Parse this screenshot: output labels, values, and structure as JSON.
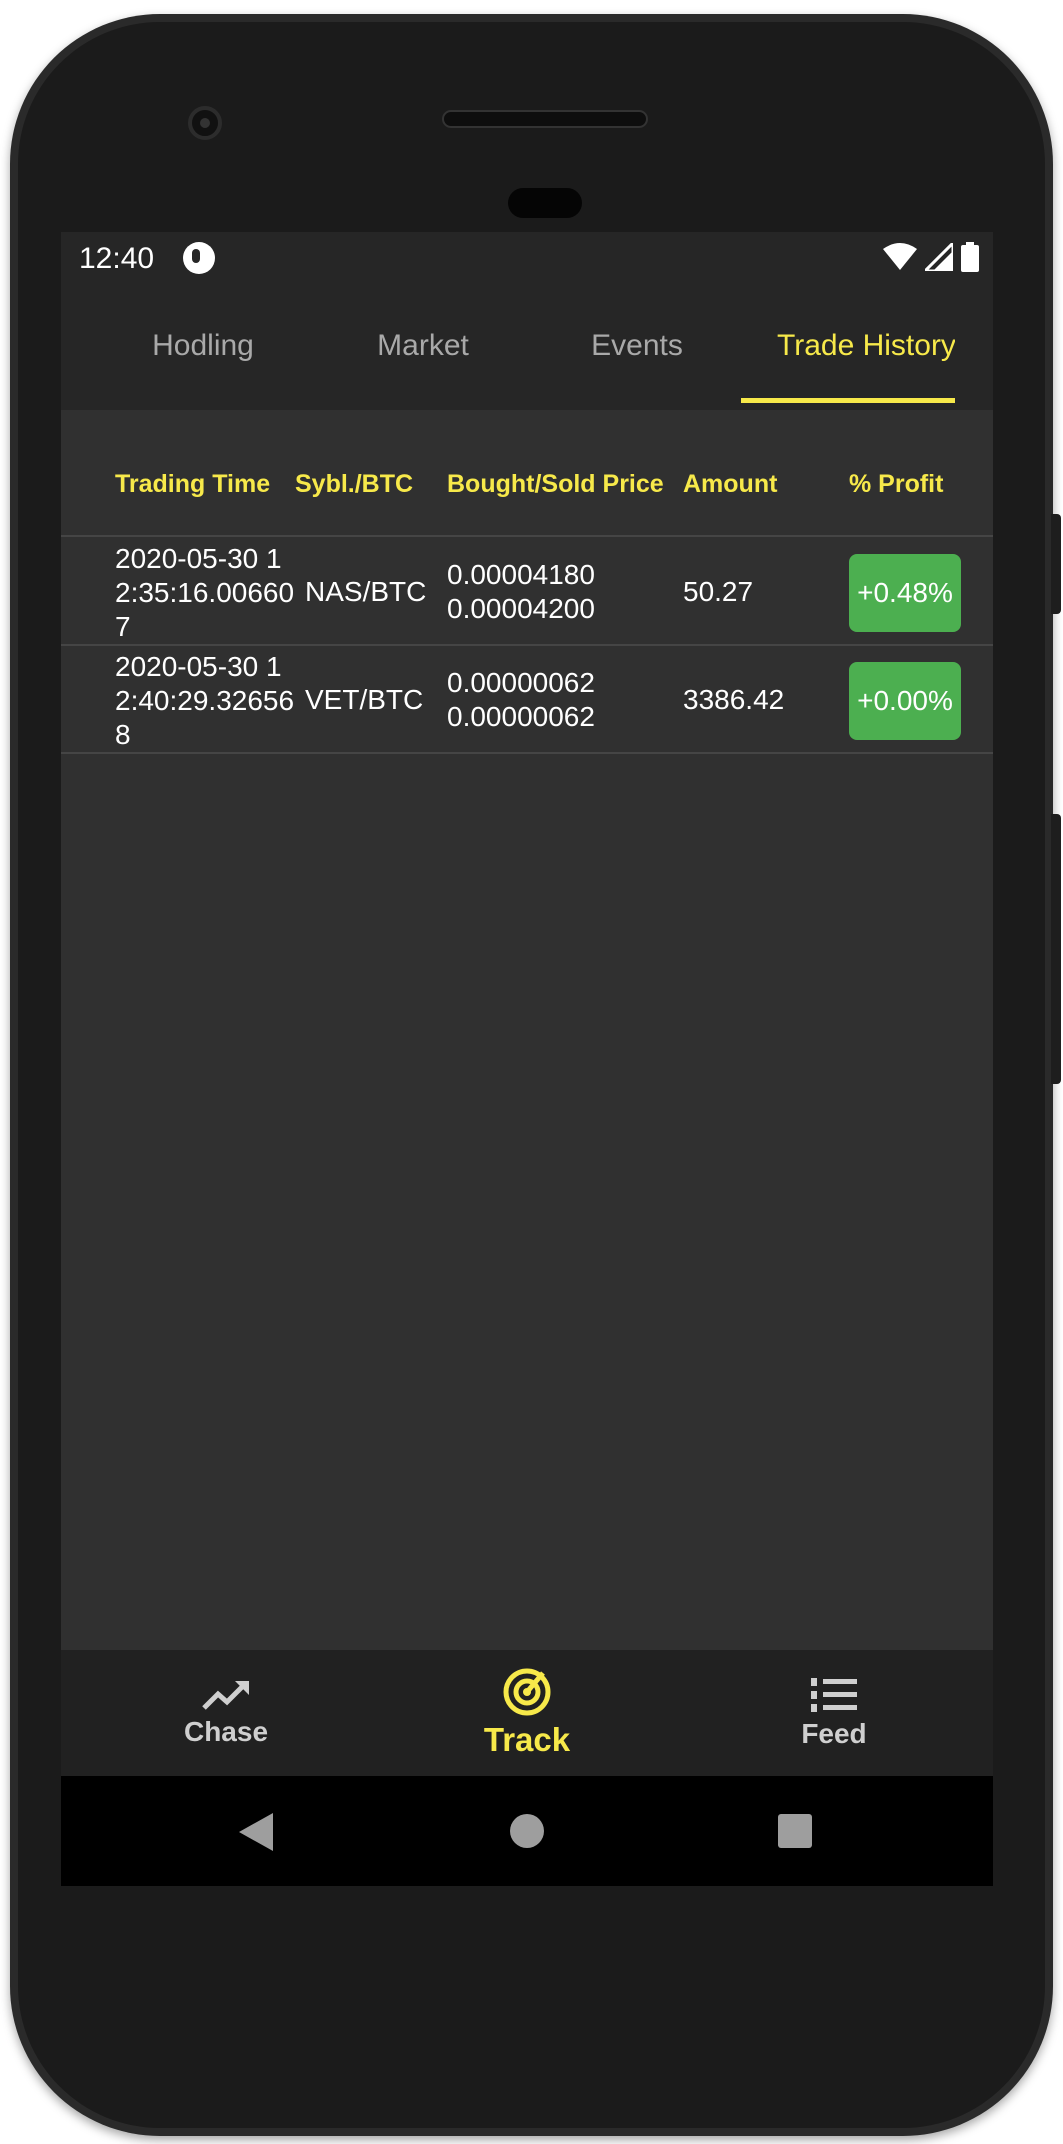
{
  "status_bar": {
    "time": "12:40",
    "icons": [
      "app-notification-icon",
      "wifi-icon",
      "signal-icon",
      "battery-icon"
    ]
  },
  "tabs": [
    {
      "label": "Hodling",
      "active": false
    },
    {
      "label": "Market",
      "active": false
    },
    {
      "label": "Events",
      "active": false
    },
    {
      "label": "Trade History",
      "active": true
    }
  ],
  "table": {
    "headers": [
      "Trading Time",
      "Sybl./BTC",
      "Bought/Sold Price",
      "Amount",
      "% Profit"
    ],
    "rows": [
      {
        "time": "2020-05-30 12:35:16.006607",
        "symbol": "NAS/BTC",
        "bought_price": "0.00004180",
        "sold_price": "0.00004200",
        "amount": "50.27",
        "profit": "+0.48%"
      },
      {
        "time": "2020-05-30 12:40:29.326568",
        "symbol": "VET/BTC",
        "bought_price": "0.00000062",
        "sold_price": "0.00000062",
        "amount": "3386.42",
        "profit": "+0.00%"
      }
    ]
  },
  "bottom_nav": [
    {
      "label": "Chase",
      "icon": "trending-up-icon",
      "active": false
    },
    {
      "label": "Track",
      "icon": "radar-icon",
      "active": true
    },
    {
      "label": "Feed",
      "icon": "numbered-list-icon",
      "active": false
    }
  ],
  "colors": {
    "accent": "#f7e94a",
    "background": "#303030",
    "profit_badge": "#4caf50"
  }
}
